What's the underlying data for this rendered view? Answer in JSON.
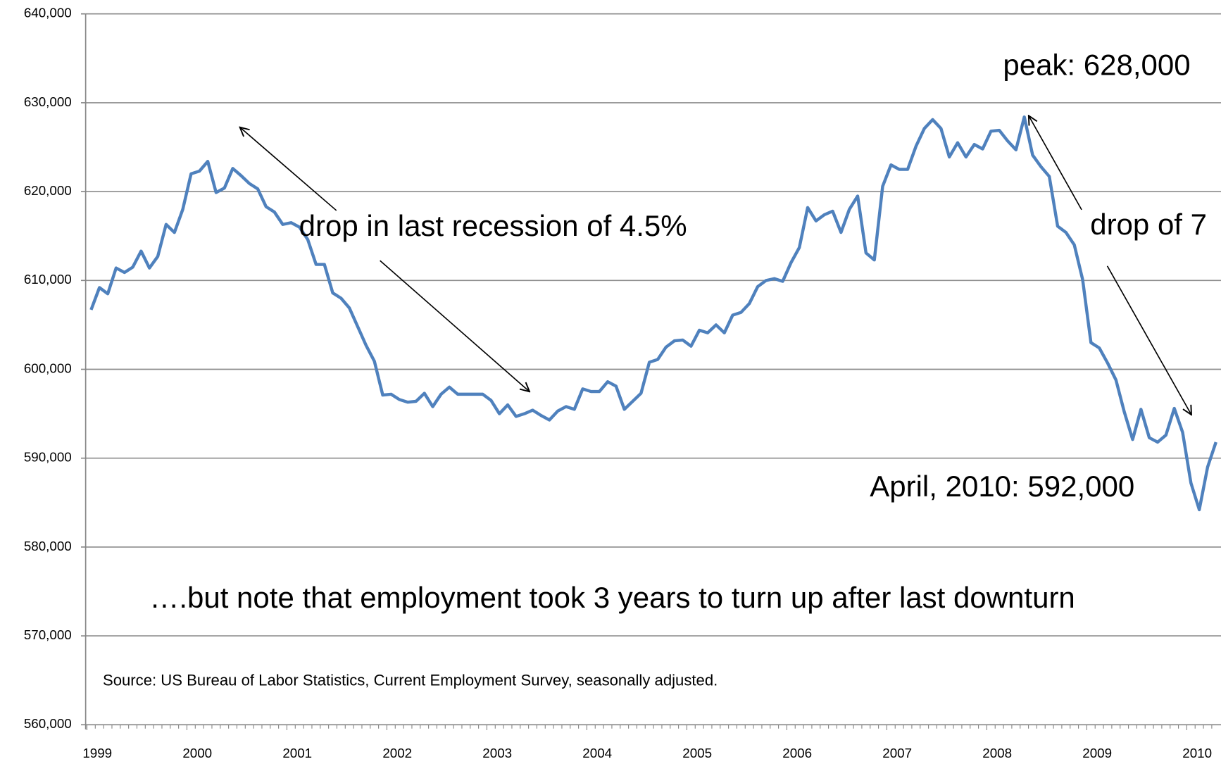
{
  "chart_data": {
    "type": "line",
    "categories": [
      "1999",
      null,
      null,
      null,
      null,
      null,
      null,
      null,
      null,
      null,
      null,
      null,
      "2000",
      null,
      null,
      null,
      null,
      null,
      null,
      null,
      null,
      null,
      null,
      null,
      "2001",
      null,
      null,
      null,
      null,
      null,
      null,
      null,
      null,
      null,
      null,
      null,
      "2002",
      null,
      null,
      null,
      null,
      null,
      null,
      null,
      null,
      null,
      null,
      null,
      "2003",
      null,
      null,
      null,
      null,
      null,
      null,
      null,
      null,
      null,
      null,
      null,
      "2004",
      null,
      null,
      null,
      null,
      null,
      null,
      null,
      null,
      null,
      null,
      null,
      "2005",
      null,
      null,
      null,
      null,
      null,
      null,
      null,
      null,
      null,
      null,
      null,
      "2006",
      null,
      null,
      null,
      null,
      null,
      null,
      null,
      null,
      null,
      null,
      null,
      "2007",
      null,
      null,
      null,
      null,
      null,
      null,
      null,
      null,
      null,
      null,
      null,
      "2008",
      null,
      null,
      null,
      null,
      null,
      null,
      null,
      null,
      null,
      null,
      null,
      "2009",
      null,
      null,
      null,
      null,
      null,
      null,
      null,
      null,
      null,
      null,
      null,
      "2010",
      null,
      null,
      null
    ],
    "series": [
      {
        "color": "#4f81bd",
        "values": [
          606700,
          609200,
          608500,
          611400,
          610900,
          611500,
          613300,
          611400,
          612700,
          616300,
          615400,
          618000,
          622000,
          622300,
          623400,
          619900,
          620400,
          622600,
          621800,
          620900,
          620300,
          618300,
          617700,
          616300,
          616500,
          616000,
          614600,
          611800,
          611800,
          608600,
          608000,
          606900,
          604800,
          602700,
          600900,
          597100,
          597200,
          596600,
          596300,
          596400,
          597300,
          595800,
          597200,
          598000,
          597200,
          597200,
          597200,
          597200,
          596500,
          595000,
          596000,
          594700,
          595000,
          595400,
          594800,
          594300,
          595300,
          595800,
          595500,
          597800,
          597500,
          597500,
          598600,
          598100,
          595500,
          596400,
          597300,
          600800,
          601100,
          602500,
          603200,
          603300,
          602600,
          604400,
          604100,
          605000,
          604100,
          606100,
          606400,
          607400,
          609300,
          610000,
          610200,
          609900,
          612000,
          613700,
          618200,
          616700,
          617400,
          617800,
          615400,
          618000,
          619500,
          613100,
          612300,
          620600,
          623000,
          622500,
          622500,
          625100,
          627100,
          628100,
          627100,
          623900,
          625500,
          623900,
          625300,
          624800,
          626800,
          626900,
          625700,
          624700,
          628400,
          624100,
          622800,
          621700,
          616100,
          615400,
          614000,
          610100,
          603000,
          602400,
          600700,
          598800,
          595200,
          592100,
          595500,
          592300,
          591800,
          592600,
          595600,
          592900,
          587200,
          584200,
          589000,
          591800
        ]
      }
    ],
    "ylim": [
      560000,
      640000
    ],
    "yticks": [
      {
        "value": 560000,
        "label": "560,000"
      },
      {
        "value": 570000,
        "label": "570,000"
      },
      {
        "value": 580000,
        "label": "580,000"
      },
      {
        "value": 590000,
        "label": "590,000"
      },
      {
        "value": 600000,
        "label": "600,000"
      },
      {
        "value": 610000,
        "label": "610,000"
      },
      {
        "value": 620000,
        "label": "620,000"
      },
      {
        "value": 630000,
        "label": "630,000"
      },
      {
        "value": 640000,
        "label": "640,000"
      }
    ],
    "grid": true,
    "annotations": [
      "peak: 628,000",
      "drop in last recession of 4.5%",
      "drop of 7",
      "April, 2010: 592,000",
      "….but note that employment took 3 years to turn up after last downturn",
      "Source: US Bureau of Labor Statistics, Current Employment Survey, seasonally adjusted."
    ]
  }
}
